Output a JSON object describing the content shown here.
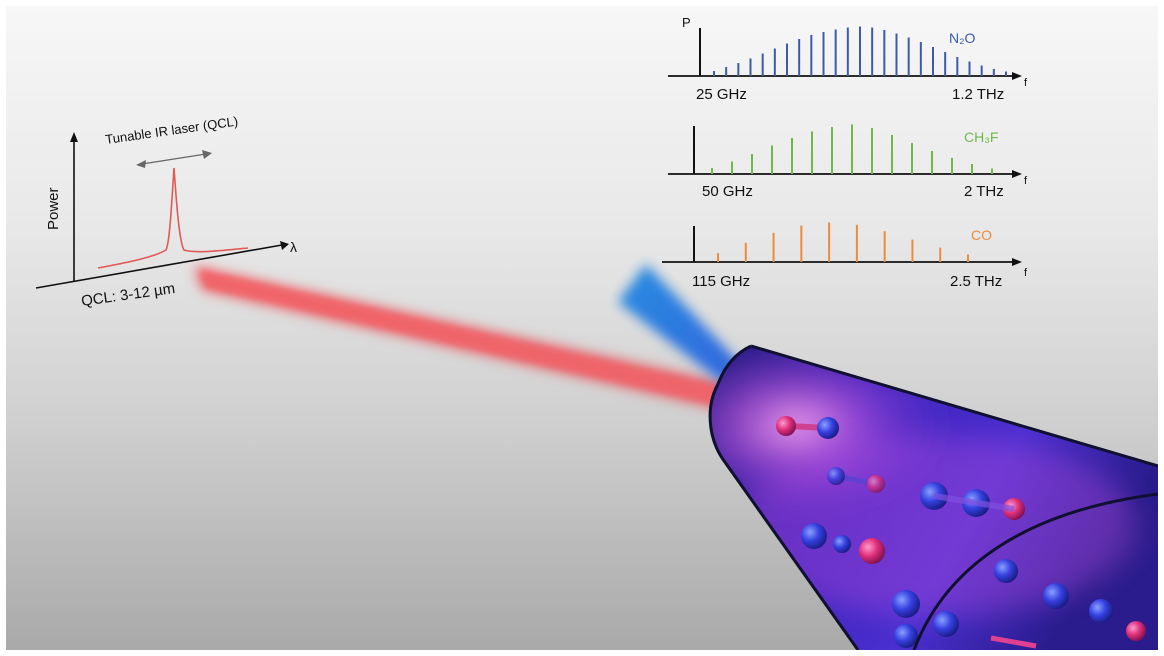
{
  "qcl_panel": {
    "y_axis_label": "Power",
    "x_axis_label": "λ",
    "laser_label": "Tunable IR laser (QCL)",
    "range_label": "QCL: 3-12 µm"
  },
  "colors": {
    "n2o": "#3b5ba8",
    "ch3f": "#6fb84a",
    "co": "#ee8a3c",
    "ir_beam": "#ef5a5f",
    "thz_beam": "#1f86d9",
    "laser_curve": "#e05a55"
  },
  "spectra": [
    {
      "molecule": "N₂O",
      "color": "#3b5ba8",
      "p_label": "P",
      "f_label": "f",
      "start_label": "25 GHz",
      "end_label": "1.2 THz",
      "relative_intensities": [
        0.1,
        0.18,
        0.26,
        0.35,
        0.45,
        0.55,
        0.65,
        0.74,
        0.82,
        0.88,
        0.93,
        0.97,
        0.99,
        0.97,
        0.92,
        0.85,
        0.77,
        0.68,
        0.58,
        0.48,
        0.38,
        0.29,
        0.21,
        0.14,
        0.09
      ]
    },
    {
      "molecule": "CH₃F",
      "color": "#6fb84a",
      "p_label": "",
      "f_label": "f",
      "start_label": "50 GHz",
      "end_label": "2 THz",
      "relative_intensities": [
        0.12,
        0.25,
        0.4,
        0.57,
        0.72,
        0.85,
        0.94,
        0.99,
        0.92,
        0.78,
        0.62,
        0.46,
        0.32,
        0.2,
        0.11
      ]
    },
    {
      "molecule": "CO",
      "color": "#ee8a3c",
      "p_label": "",
      "f_label": "f",
      "start_label": "115 GHz",
      "end_label": "2.5 THz",
      "relative_intensities": [
        0.22,
        0.48,
        0.73,
        0.91,
        0.99,
        0.93,
        0.77,
        0.56,
        0.36,
        0.19
      ]
    }
  ]
}
